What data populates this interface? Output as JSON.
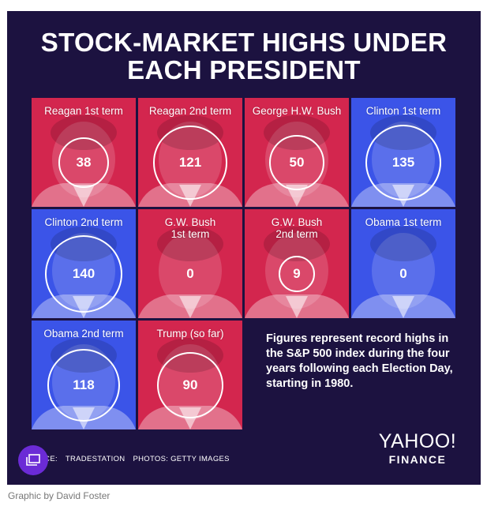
{
  "graphic": {
    "title_line1": "STOCK-MARKET HIGHS UNDER",
    "title_line2": "EACH PRESIDENT",
    "note": "Figures represent record highs in the S&P 500 index during the four years following each Election Day, starting in 1980.",
    "source_prefix": "RCE:",
    "source_value": "TRADESTATION",
    "photos_label": "PHOTOS: GETTY IMAGES",
    "logo_line1": "YAHOO!",
    "logo_line2": "FINANCE"
  },
  "chart_data": {
    "type": "table",
    "title": "STOCK-MARKET HIGHS UNDER EACH PRESIDENT",
    "categories": [
      "Reagan 1st term",
      "Reagan 2nd term",
      "George H.W. Bush",
      "Clinton 1st term",
      "Clinton 2nd term",
      "G.W. Bush\n1st term",
      "G.W. Bush\n2nd term",
      "Obama 1st term",
      "Obama 2nd term",
      "Trump (so far)"
    ],
    "values": [
      38,
      121,
      50,
      135,
      140,
      0,
      9,
      0,
      118,
      90
    ],
    "party": [
      "R",
      "R",
      "R",
      "D",
      "D",
      "R",
      "R",
      "D",
      "D",
      "R"
    ],
    "colors": {
      "R": "#d3264e",
      "D": "#3b54e8"
    }
  },
  "caption": "Graphic by David Foster",
  "icons": {
    "overlay": "gallery-icon"
  }
}
